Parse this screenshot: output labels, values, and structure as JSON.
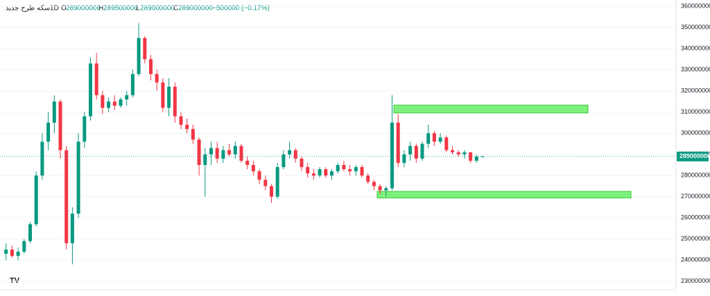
{
  "header": {
    "symbol": "سکه طرح جدید",
    "interval": "1D",
    "open_label": "O",
    "open": "289000000",
    "high_label": "H",
    "high": "289500000",
    "low_label": "L",
    "low": "289000000",
    "close_label": "C",
    "close": "289000000",
    "change": "−500000 (−0.17%)"
  },
  "chart_data": {
    "type": "candlestick",
    "up_color": "#089981",
    "down_color": "#f23645",
    "zone_color": "#7cf27c",
    "ylim": [
      226000000,
      363000000
    ],
    "yticks": [
      230000000,
      240000000,
      250000000,
      260000000,
      270000000,
      280000000,
      290000000,
      300000000,
      310000000,
      320000000,
      330000000,
      340000000,
      350000000,
      360000000
    ],
    "open": [
      243000000,
      245000000,
      242000000,
      244000000,
      249000000,
      257000000,
      280000000,
      296000000,
      305000000,
      315000000,
      292000000,
      248000000,
      262000000,
      296000000,
      308000000,
      333000000,
      318000000,
      312000000,
      315000000,
      313000000,
      316000000,
      318000000,
      328000000,
      345000000,
      335000000,
      328000000,
      324000000,
      312000000,
      322000000,
      308000000,
      304000000,
      302000000,
      297000000,
      285000000,
      290000000,
      293000000,
      288000000,
      292000000,
      290000000,
      294000000,
      287000000,
      285000000,
      282000000,
      278000000,
      275000000,
      270000000,
      284000000,
      290000000,
      292000000,
      288000000,
      284000000,
      281000000,
      280000000,
      283000000,
      280000000,
      282000000,
      285000000,
      283000000,
      282000000,
      284000000,
      280000000,
      277000000,
      275000000,
      273000000,
      274000000,
      305000000,
      286000000,
      290000000,
      294000000,
      288000000,
      295000000,
      300000000,
      296000000,
      298000000,
      292000000,
      291000000,
      290000000,
      291000000,
      287000000,
      289000000
    ],
    "high": [
      248000000,
      247000000,
      246000000,
      250000000,
      258000000,
      282000000,
      300000000,
      310000000,
      318000000,
      316000000,
      294000000,
      265000000,
      300000000,
      310000000,
      336000000,
      338000000,
      320000000,
      317000000,
      318000000,
      317000000,
      320000000,
      330000000,
      352000000,
      346000000,
      337000000,
      330000000,
      326000000,
      326000000,
      324000000,
      310000000,
      307000000,
      304000000,
      298000000,
      293000000,
      296000000,
      296000000,
      294000000,
      295000000,
      296000000,
      295000000,
      289000000,
      287000000,
      283000000,
      280000000,
      276000000,
      286000000,
      292000000,
      296000000,
      293000000,
      289000000,
      286000000,
      283000000,
      284000000,
      284000000,
      283000000,
      286000000,
      287000000,
      285000000,
      285000000,
      285000000,
      281000000,
      278000000,
      276000000,
      275000000,
      318000000,
      309000000,
      292000000,
      296000000,
      295000000,
      296000000,
      304000000,
      301000000,
      300000000,
      299000000,
      294000000,
      292000000,
      292000000,
      291000000,
      290000000,
      289500000
    ],
    "low": [
      240000000,
      241000000,
      240000000,
      243000000,
      248000000,
      256000000,
      278000000,
      292000000,
      300000000,
      288000000,
      245000000,
      238000000,
      260000000,
      293000000,
      306000000,
      316000000,
      309000000,
      310000000,
      311000000,
      312000000,
      313000000,
      317000000,
      327000000,
      333000000,
      325000000,
      320000000,
      310000000,
      308000000,
      305000000,
      302000000,
      300000000,
      295000000,
      280000000,
      270000000,
      285000000,
      286000000,
      286000000,
      289000000,
      288000000,
      286000000,
      283000000,
      280000000,
      276000000,
      273000000,
      267000000,
      269000000,
      283000000,
      288000000,
      286000000,
      282000000,
      279000000,
      278000000,
      279000000,
      279000000,
      278000000,
      281000000,
      282000000,
      280000000,
      280000000,
      279000000,
      276000000,
      273000000,
      271000000,
      270000000,
      273000000,
      284000000,
      284000000,
      287000000,
      286000000,
      287000000,
      293000000,
      294000000,
      295000000,
      291000000,
      290000000,
      289000000,
      288000000,
      286000000,
      286000000,
      289000000
    ],
    "close": [
      245000000,
      242000000,
      244000000,
      249000000,
      257000000,
      280000000,
      296000000,
      305000000,
      315000000,
      292000000,
      248000000,
      262000000,
      296000000,
      308000000,
      333000000,
      318000000,
      312000000,
      315000000,
      313000000,
      316000000,
      318000000,
      328000000,
      345000000,
      335000000,
      328000000,
      324000000,
      312000000,
      322000000,
      308000000,
      304000000,
      302000000,
      297000000,
      285000000,
      290000000,
      293000000,
      288000000,
      292000000,
      290000000,
      294000000,
      287000000,
      285000000,
      282000000,
      278000000,
      275000000,
      270000000,
      284000000,
      290000000,
      292000000,
      288000000,
      284000000,
      281000000,
      280000000,
      283000000,
      280000000,
      282000000,
      285000000,
      283000000,
      282000000,
      284000000,
      280000000,
      277000000,
      275000000,
      273000000,
      274000000,
      305000000,
      286000000,
      290000000,
      294000000,
      288000000,
      295000000,
      300000000,
      296000000,
      298000000,
      292000000,
      291000000,
      290000000,
      291000000,
      287000000,
      289000000,
      289000000
    ],
    "zones": [
      {
        "top": 313300000,
        "bottom": 309600000
      },
      {
        "top": 272500000,
        "bottom": 269400000
      }
    ]
  }
}
